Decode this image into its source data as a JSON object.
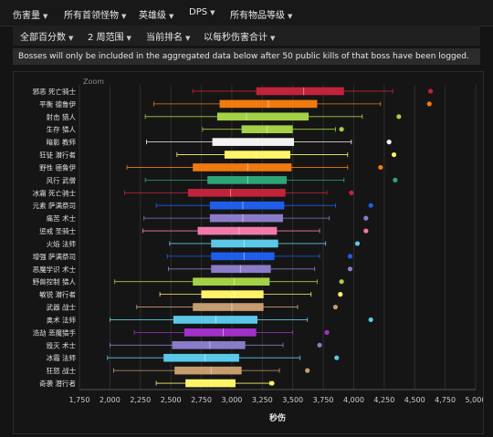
{
  "topnav": [
    "伤害量",
    "所有首领怪物",
    "英雄级",
    "DPS",
    "所有物品等级"
  ],
  "subnav": [
    "全部百分数",
    "2 周范围",
    "当前排名",
    "以每秒伤害合计"
  ],
  "notice": "Bosses will only be included in the aggregated data below after 50 public kills of that boss have been logged.",
  "zoom_label": "Zoom",
  "chart_data": {
    "type": "boxplot",
    "orientation": "horizontal",
    "xlabel": "秒伤",
    "xlim": [
      1750,
      5000
    ],
    "xticks": [
      1750,
      2000,
      2250,
      2500,
      2750,
      3000,
      3250,
      3500,
      3750,
      4000,
      4250,
      4500,
      4750,
      5000
    ],
    "xtick_labels": [
      "1,750",
      "2,000",
      "2,250",
      "2,500",
      "2,750",
      "3,000",
      "3,250",
      "3,500",
      "3,750",
      "4,000",
      "4,250",
      "4,500",
      "4,750",
      "5,000"
    ],
    "grid": true,
    "series": [
      {
        "label": "邪恶 死亡骑士",
        "color": "#c0233a",
        "min": 2680,
        "q1": 3200,
        "median": 3590,
        "q3": 3920,
        "max": 4320,
        "outlier": 4630
      },
      {
        "label": "平衡 德鲁伊",
        "color": "#f07a10",
        "min": 2360,
        "q1": 2900,
        "median": 3300,
        "q3": 3700,
        "max": 4220,
        "outlier": 4620
      },
      {
        "label": "射击 猎人",
        "color": "#a4d145",
        "min": 2290,
        "q1": 2880,
        "median": 3120,
        "q3": 3630,
        "max": 4070,
        "outlier": 4370
      },
      {
        "label": "生存 猎人",
        "color": "#a4d145",
        "min": 2760,
        "q1": 3080,
        "median": 3290,
        "q3": 3500,
        "max": 3850,
        "outlier": 3900
      },
      {
        "label": "暗影 教师",
        "color": "#f2f2f2",
        "min": 2300,
        "q1": 2840,
        "median": 3210,
        "q3": 3510,
        "max": 3980,
        "outlier": 4290
      },
      {
        "label": "狂徒 潜行者",
        "color": "#fff468",
        "min": 2550,
        "q1": 2940,
        "median": 3200,
        "q3": 3480,
        "max": 3950,
        "outlier": 4330
      },
      {
        "label": "野性 德鲁伊",
        "color": "#f07a10",
        "min": 2140,
        "q1": 2680,
        "median": 3130,
        "q3": 3490,
        "max": 3950,
        "outlier": 4220
      },
      {
        "label": "风行 武僧",
        "color": "#2fa478",
        "min": 2290,
        "q1": 2800,
        "median": 3130,
        "q3": 3450,
        "max": 3920,
        "outlier": 4340
      },
      {
        "label": "冰霜 死亡骑士",
        "color": "#c0233a",
        "min": 2120,
        "q1": 2640,
        "median": 2990,
        "q3": 3440,
        "max": 3780,
        "outlier": 3980
      },
      {
        "label": "元素 萨满祭司",
        "color": "#1f5ee8",
        "min": 2380,
        "q1": 2820,
        "median": 3090,
        "q3": 3430,
        "max": 3850,
        "outlier": 4140
      },
      {
        "label": "痛苦 术士",
        "color": "#8a7cc8",
        "min": 2280,
        "q1": 2820,
        "median": 3090,
        "q3": 3420,
        "max": 3800,
        "outlier": 4100
      },
      {
        "label": "惩戒 圣骑士",
        "color": "#f07aaa",
        "min": 2270,
        "q1": 2720,
        "median": 3060,
        "q3": 3370,
        "max": 3720,
        "outlier": 4100
      },
      {
        "label": "火焰 法师",
        "color": "#5bc8e8",
        "min": 2490,
        "q1": 2830,
        "median": 3100,
        "q3": 3380,
        "max": 3770,
        "outlier": 4030
      },
      {
        "label": "增强 萨满祭司",
        "color": "#1f5ee8",
        "min": 2470,
        "q1": 2830,
        "median": 3100,
        "q3": 3350,
        "max": 3720,
        "outlier": 3970
      },
      {
        "label": "恶魔学识 术士",
        "color": "#8a7cc8",
        "min": 2480,
        "q1": 2830,
        "median": 3070,
        "q3": 3320,
        "max": 3680,
        "outlier": 3970
      },
      {
        "label": "野兽控制 猎人",
        "color": "#a4d145",
        "min": 2040,
        "q1": 2680,
        "median": 3020,
        "q3": 3310,
        "max": 3700,
        "outlier": 3900
      },
      {
        "label": "敏锐 潜行者",
        "color": "#fff468",
        "min": 2410,
        "q1": 2750,
        "median": 3020,
        "q3": 3260,
        "max": 3650,
        "outlier": 3890
      },
      {
        "label": "武器 战士",
        "color": "#c79c6e",
        "min": 2220,
        "q1": 2680,
        "median": 3000,
        "q3": 3260,
        "max": 3540,
        "outlier": 3850
      },
      {
        "label": "奥术 法师",
        "color": "#5bc8e8",
        "min": 2000,
        "q1": 2520,
        "median": 2870,
        "q3": 3210,
        "max": 3620,
        "outlier": 4140
      },
      {
        "label": "浩劫 恶魔猎手",
        "color": "#a330c9",
        "min": 2200,
        "q1": 2610,
        "median": 2930,
        "q3": 3200,
        "max": 3500,
        "outlier": 3780
      },
      {
        "label": "毁灭 术士",
        "color": "#8a7cc8",
        "min": 2000,
        "q1": 2510,
        "median": 2820,
        "q3": 3110,
        "max": 3420,
        "outlier": 3720
      },
      {
        "label": "冰霜 法师",
        "color": "#5bc8e8",
        "min": 1980,
        "q1": 2440,
        "median": 2780,
        "q3": 3060,
        "max": 3560,
        "outlier": 3860
      },
      {
        "label": "狂怒 战士",
        "color": "#c79c6e",
        "min": 2030,
        "q1": 2530,
        "median": 2830,
        "q3": 3080,
        "max": 3390,
        "outlier": 3620
      },
      {
        "label": "奇袭 潜行者",
        "color": "#fff468",
        "min": 2380,
        "q1": 2620,
        "median": 2830,
        "q3": 3030,
        "max": 3310,
        "outlier": 3330
      }
    ]
  }
}
